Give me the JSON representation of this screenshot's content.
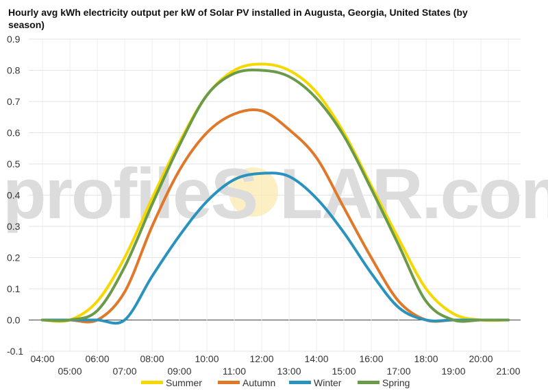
{
  "title": "Hourly avg kWh electricity output per kW of Solar PV installed in Augusta, Georgia, United States (by season)",
  "watermark": {
    "left": "profileS",
    "right": "LAR.com"
  },
  "colors": {
    "Summer": "#f5d800",
    "Autumn": "#e0782a",
    "Winter": "#2a93bd",
    "Spring": "#6b9a4a"
  },
  "chart_data": {
    "type": "line",
    "title": "Hourly avg kWh electricity output per kW of Solar PV installed in Augusta, Georgia, United States (by season)",
    "xlabel": "",
    "ylabel": "",
    "ylim": [
      -0.1,
      0.9
    ],
    "yticks": [
      "0.9",
      "0.8",
      "0.7",
      "0.6",
      "0.5",
      "0.4",
      "0.3",
      "0.2",
      "0.1",
      "0.0",
      "-0.1"
    ],
    "x": [
      "04:00",
      "05:00",
      "06:00",
      "07:00",
      "08:00",
      "09:00",
      "10:00",
      "11:00",
      "12:00",
      "13:00",
      "14:00",
      "15:00",
      "16:00",
      "17:00",
      "18:00",
      "19:00",
      "20:00",
      "21:00"
    ],
    "grid": true,
    "legend_position": "bottom",
    "series": [
      {
        "name": "Summer",
        "values": [
          0.0,
          0.0,
          0.06,
          0.2,
          0.39,
          0.57,
          0.72,
          0.8,
          0.82,
          0.8,
          0.73,
          0.6,
          0.43,
          0.26,
          0.1,
          0.02,
          0.0,
          0.0
        ]
      },
      {
        "name": "Autumn",
        "values": [
          0.0,
          0.0,
          0.0,
          0.09,
          0.3,
          0.48,
          0.6,
          0.66,
          0.67,
          0.61,
          0.52,
          0.36,
          0.2,
          0.06,
          0.0,
          0.0,
          0.0,
          0.0
        ]
      },
      {
        "name": "Winter",
        "values": [
          0.0,
          0.0,
          0.0,
          0.0,
          0.14,
          0.27,
          0.38,
          0.45,
          0.47,
          0.46,
          0.39,
          0.28,
          0.15,
          0.04,
          0.0,
          0.0,
          0.0,
          0.0
        ]
      },
      {
        "name": "Spring",
        "values": [
          0.0,
          0.0,
          0.03,
          0.17,
          0.37,
          0.56,
          0.72,
          0.79,
          0.8,
          0.78,
          0.71,
          0.59,
          0.42,
          0.24,
          0.06,
          0.0,
          0.0,
          0.0
        ]
      }
    ]
  }
}
